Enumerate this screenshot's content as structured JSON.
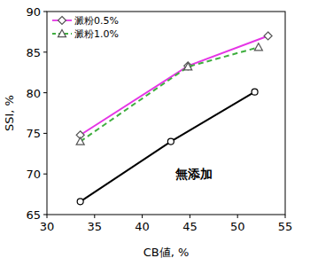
{
  "chart_data": {
    "type": "line",
    "xlabel": "CB値, %",
    "ylabel": "SSI, %",
    "xlim": [
      30,
      55
    ],
    "xticks": [
      30,
      35,
      40,
      45,
      50,
      55
    ],
    "ylim": [
      65,
      90
    ],
    "yticks": [
      65,
      70,
      75,
      80,
      85,
      90
    ],
    "grid": false,
    "legend": "top-left",
    "series": [
      {
        "name": "澱粉0.5%",
        "color": "#e535e5",
        "marker": "diamond",
        "line_style": "solid",
        "x": [
          33.5,
          44.8,
          53.2
        ],
        "values": [
          74.8,
          83.3,
          87.0
        ]
      },
      {
        "name": "澱粉1.0%",
        "color": "#3fae3f",
        "marker": "triangle",
        "line_style": "dashed",
        "x": [
          33.5,
          44.8,
          52.2
        ],
        "values": [
          74.0,
          83.2,
          85.6
        ]
      },
      {
        "color": "#000000",
        "marker": "circle",
        "line_style": "solid",
        "x": [
          33.5,
          43.0,
          51.8
        ],
        "values": [
          66.6,
          74.0,
          80.1
        ]
      }
    ],
    "annotations": [
      {
        "text": "無添加",
        "x": 43.5,
        "y": 69.5
      }
    ]
  }
}
